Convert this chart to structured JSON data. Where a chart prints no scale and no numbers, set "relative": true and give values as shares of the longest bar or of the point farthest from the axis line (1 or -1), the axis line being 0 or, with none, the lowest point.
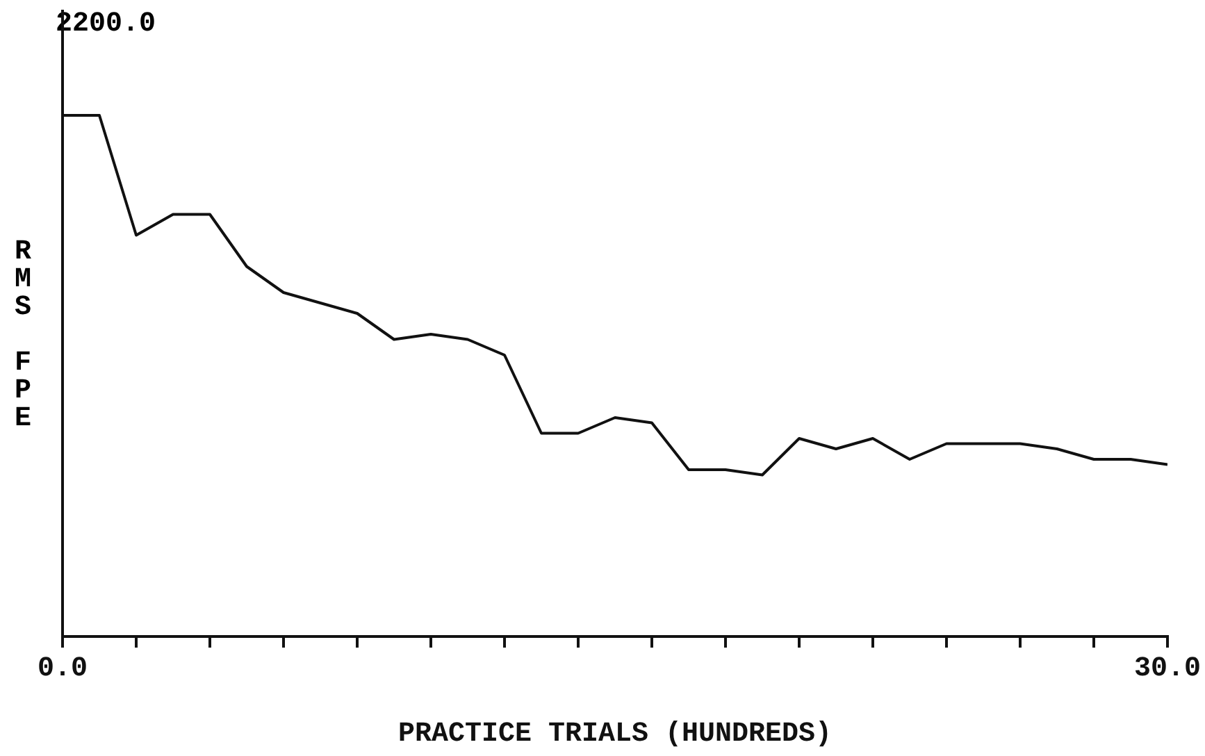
{
  "chart_data": {
    "type": "line",
    "xlabel": "PRACTICE TRIALS (HUNDREDS)",
    "ylabel": "RMS FPE",
    "x": [
      0,
      1,
      2,
      3,
      4,
      5,
      6,
      7,
      8,
      9,
      10,
      11,
      12,
      13,
      14,
      15,
      16,
      17,
      18,
      19,
      20,
      21,
      22,
      23,
      24,
      26,
      27,
      28,
      29,
      30
    ],
    "series": [
      {
        "color": "#111111",
        "values": [
          1,
          1,
          0.77,
          0.81,
          0.81,
          0.71,
          0.66,
          0.64,
          0.62,
          0.57,
          0.58,
          0.57,
          0.54,
          0.39,
          0.39,
          0.42,
          0.41,
          0.32,
          0.32,
          0.31,
          0.38,
          0.36,
          0.38,
          0.34,
          0.37,
          0.37,
          0.36,
          0.34,
          0.34,
          0.33
        ]
      }
    ],
    "relative": true,
    "annotations": [
      "2200.0"
    ],
    "xlim": [
      0,
      30
    ],
    "xticks": [
      {
        "value": 0,
        "label": "0.0"
      },
      {
        "value": 2,
        "label": null
      },
      {
        "value": 4,
        "label": null
      },
      {
        "value": 6,
        "label": null
      },
      {
        "value": 8,
        "label": null
      },
      {
        "value": 10,
        "label": null
      },
      {
        "value": 12,
        "label": null
      },
      {
        "value": 14,
        "label": null
      },
      {
        "value": 16,
        "label": null
      },
      {
        "value": 18,
        "label": null
      },
      {
        "value": 20,
        "label": null
      },
      {
        "value": 22,
        "label": null
      },
      {
        "value": 24,
        "label": null
      },
      {
        "value": 26,
        "label": null
      },
      {
        "value": 28,
        "label": null
      },
      {
        "value": 30,
        "label": "30.0"
      }
    ],
    "legend": false,
    "marker": "none",
    "line_style": "solid"
  }
}
